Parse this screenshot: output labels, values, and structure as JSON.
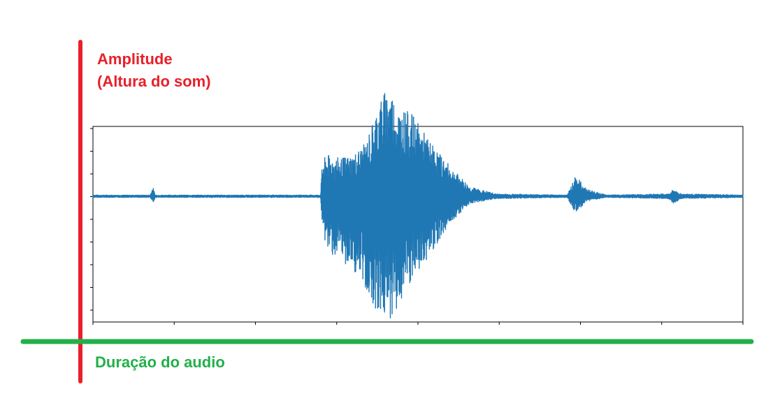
{
  "annotations": {
    "amplitude_title": "Amplitude",
    "amplitude_subtitle": "(Altura do som)",
    "duration_label": "Duração do audio"
  },
  "colors": {
    "vertical_axis": "#e8202a",
    "horizontal_axis": "#22b04a",
    "waveform": "#1f77b4",
    "plot_frame": "#000000"
  },
  "chart_data": {
    "type": "line",
    "title": "",
    "xlabel": "",
    "ylabel": "",
    "grid": false,
    "legend": "none",
    "x_ticks": 9,
    "y_ticks": 9,
    "xlim": [
      0,
      1
    ],
    "ylim": [
      -1,
      1
    ],
    "series": [
      {
        "name": "",
        "description_free": true,
        "envelope": [
          {
            "x": 0.0,
            "top": 0.01,
            "bottom": -0.01
          },
          {
            "x": 0.088,
            "top": 0.01,
            "bottom": -0.01
          },
          {
            "x": 0.092,
            "top": 0.08,
            "bottom": -0.06
          },
          {
            "x": 0.096,
            "top": 0.01,
            "bottom": -0.01
          },
          {
            "x": 0.35,
            "top": 0.01,
            "bottom": -0.01
          },
          {
            "x": 0.353,
            "top": 0.3,
            "bottom": -0.3
          },
          {
            "x": 0.36,
            "top": 0.35,
            "bottom": -0.45
          },
          {
            "x": 0.38,
            "top": 0.32,
            "bottom": -0.55
          },
          {
            "x": 0.4,
            "top": 0.35,
            "bottom": -0.62
          },
          {
            "x": 0.42,
            "top": 0.45,
            "bottom": -0.8
          },
          {
            "x": 0.44,
            "top": 0.8,
            "bottom": -1.0
          },
          {
            "x": 0.455,
            "top": 0.95,
            "bottom": -1.05
          },
          {
            "x": 0.47,
            "top": 0.75,
            "bottom": -0.95
          },
          {
            "x": 0.49,
            "top": 0.7,
            "bottom": -0.75
          },
          {
            "x": 0.52,
            "top": 0.45,
            "bottom": -0.48
          },
          {
            "x": 0.55,
            "top": 0.25,
            "bottom": -0.22
          },
          {
            "x": 0.58,
            "top": 0.08,
            "bottom": -0.06
          },
          {
            "x": 0.62,
            "top": 0.02,
            "bottom": -0.02
          },
          {
            "x": 0.73,
            "top": 0.01,
            "bottom": -0.01
          },
          {
            "x": 0.742,
            "top": 0.18,
            "bottom": -0.15
          },
          {
            "x": 0.76,
            "top": 0.06,
            "bottom": -0.04
          },
          {
            "x": 0.79,
            "top": 0.01,
            "bottom": -0.01
          },
          {
            "x": 0.886,
            "top": 0.02,
            "bottom": -0.02
          },
          {
            "x": 0.893,
            "top": 0.06,
            "bottom": -0.06
          },
          {
            "x": 0.905,
            "top": 0.02,
            "bottom": -0.02
          },
          {
            "x": 1.0,
            "top": 0.01,
            "bottom": -0.01
          }
        ]
      }
    ]
  }
}
